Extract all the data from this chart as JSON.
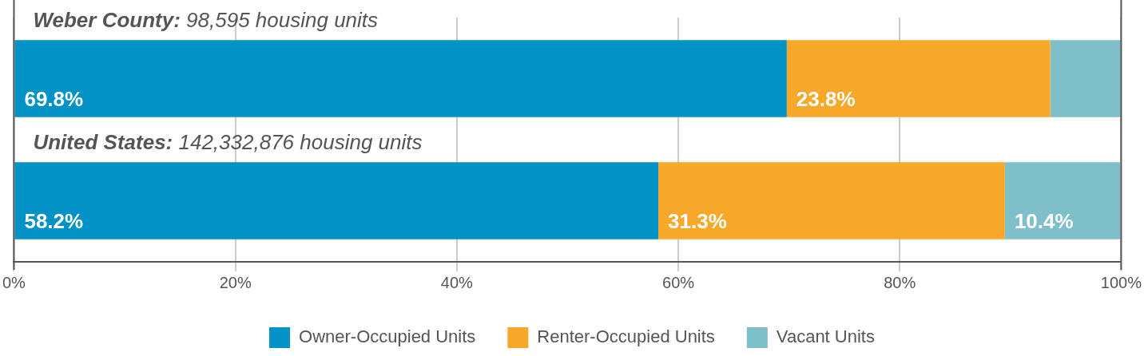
{
  "chart_data": {
    "type": "bar",
    "orientation": "horizontal",
    "stacked": true,
    "categories": [
      "Weber County: 98,595 housing units",
      "United States: 142,332,876 housing units"
    ],
    "series": [
      {
        "name": "Owner-Occupied Units",
        "color": "#0392c6",
        "values": [
          69.8,
          58.2
        ],
        "value_labels": [
          "69.8%",
          "58.2%"
        ]
      },
      {
        "name": "Renter-Occupied Units",
        "color": "#f8a829",
        "values": [
          23.8,
          31.3
        ],
        "value_labels": [
          "23.8%",
          "31.3%"
        ]
      },
      {
        "name": "Vacant Units",
        "color": "#7fbfca",
        "values": [
          6.4,
          10.4
        ],
        "value_labels": [
          null,
          "10.4%"
        ]
      }
    ],
    "xlim": [
      0,
      100
    ],
    "xticks": [
      {
        "value": 0,
        "label": "0%"
      },
      {
        "value": 20,
        "label": "20%"
      },
      {
        "value": 40,
        "label": "40%"
      },
      {
        "value": 60,
        "label": "60%"
      },
      {
        "value": 80,
        "label": "80%"
      },
      {
        "value": 100,
        "label": "100%"
      }
    ],
    "grid": "x",
    "legend": "bottom"
  }
}
